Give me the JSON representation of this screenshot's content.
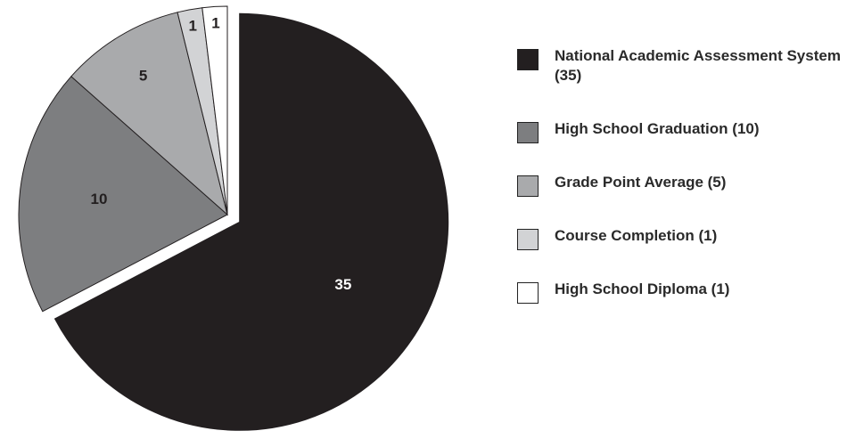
{
  "chart_data": {
    "type": "pie",
    "title": "",
    "categories": [
      "National Academic Assessment System (35)",
      "High School Graduation (10)",
      "Grade Point Average (5)",
      "Course Completion (1)",
      "High School Diploma (1)"
    ],
    "values": [
      35,
      10,
      5,
      1,
      1
    ],
    "data_labels": [
      "35",
      "10",
      "5",
      "1",
      "1"
    ],
    "colors": [
      "#231f20",
      "#7d7e80",
      "#a9aaac",
      "#d2d3d5",
      "#ffffff"
    ],
    "label_colors": [
      "#ffffff",
      "#231f20",
      "#231f20",
      "#231f20",
      "#231f20"
    ],
    "exploded_slice": "National Academic Assessment System (35)",
    "start_at": "top, clockwise",
    "legend_position": "right"
  }
}
